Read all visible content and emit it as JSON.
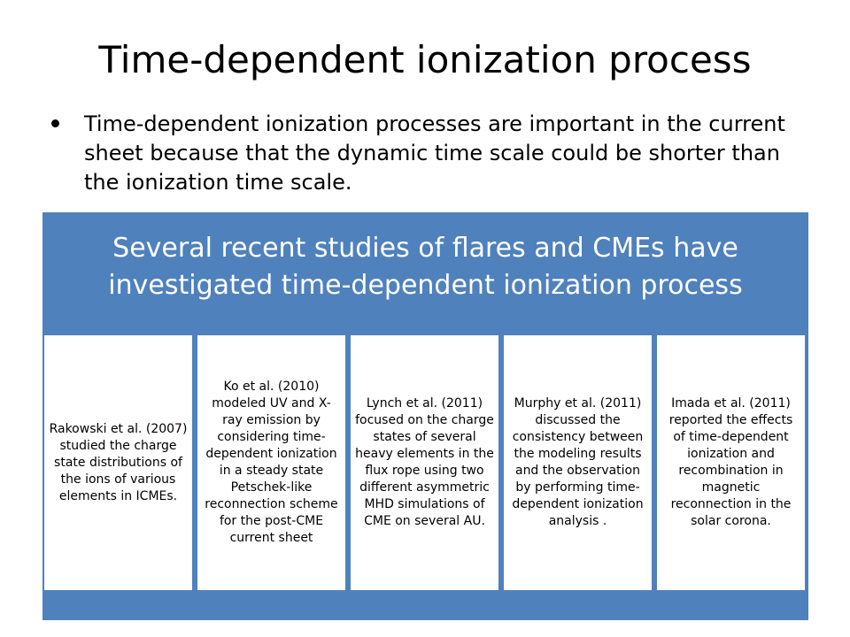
{
  "slide": {
    "title": "Time-dependent ionization process",
    "bullet": "Time-dependent ionization processes are important in the current sheet because that the dynamic time scale could be shorter than the ionization time scale."
  },
  "diagram": {
    "header": "Several recent studies of  flares and CMEs have investigated time-dependent ionization process",
    "cards": [
      {
        "text": "Rakowski et al. (2007) studied the charge state distributions of the ions of various elements in ICMEs."
      },
      {
        "text": "Ko et al. (2010) modeled UV and X-ray emission by considering time-dependent ionization in a steady state Petschek-like reconnection scheme for the post-CME current sheet"
      },
      {
        "text": "Lynch et al. (2011) focused on the charge states of several heavy elements in the flux rope using two different asymmetric MHD simulations of CME on several AU."
      },
      {
        "text": "Murphy et al. (2011) discussed the consistency between the modeling results and the observation by performing time-dependent ionization analysis ."
      },
      {
        "text": "Imada et al. (2011) reported the effects of time-dependent ionization and recombination in magnetic reconnection in the solar corona."
      }
    ],
    "colors": {
      "panel": "#4f81bd",
      "card_background": "#ffffff"
    }
  }
}
